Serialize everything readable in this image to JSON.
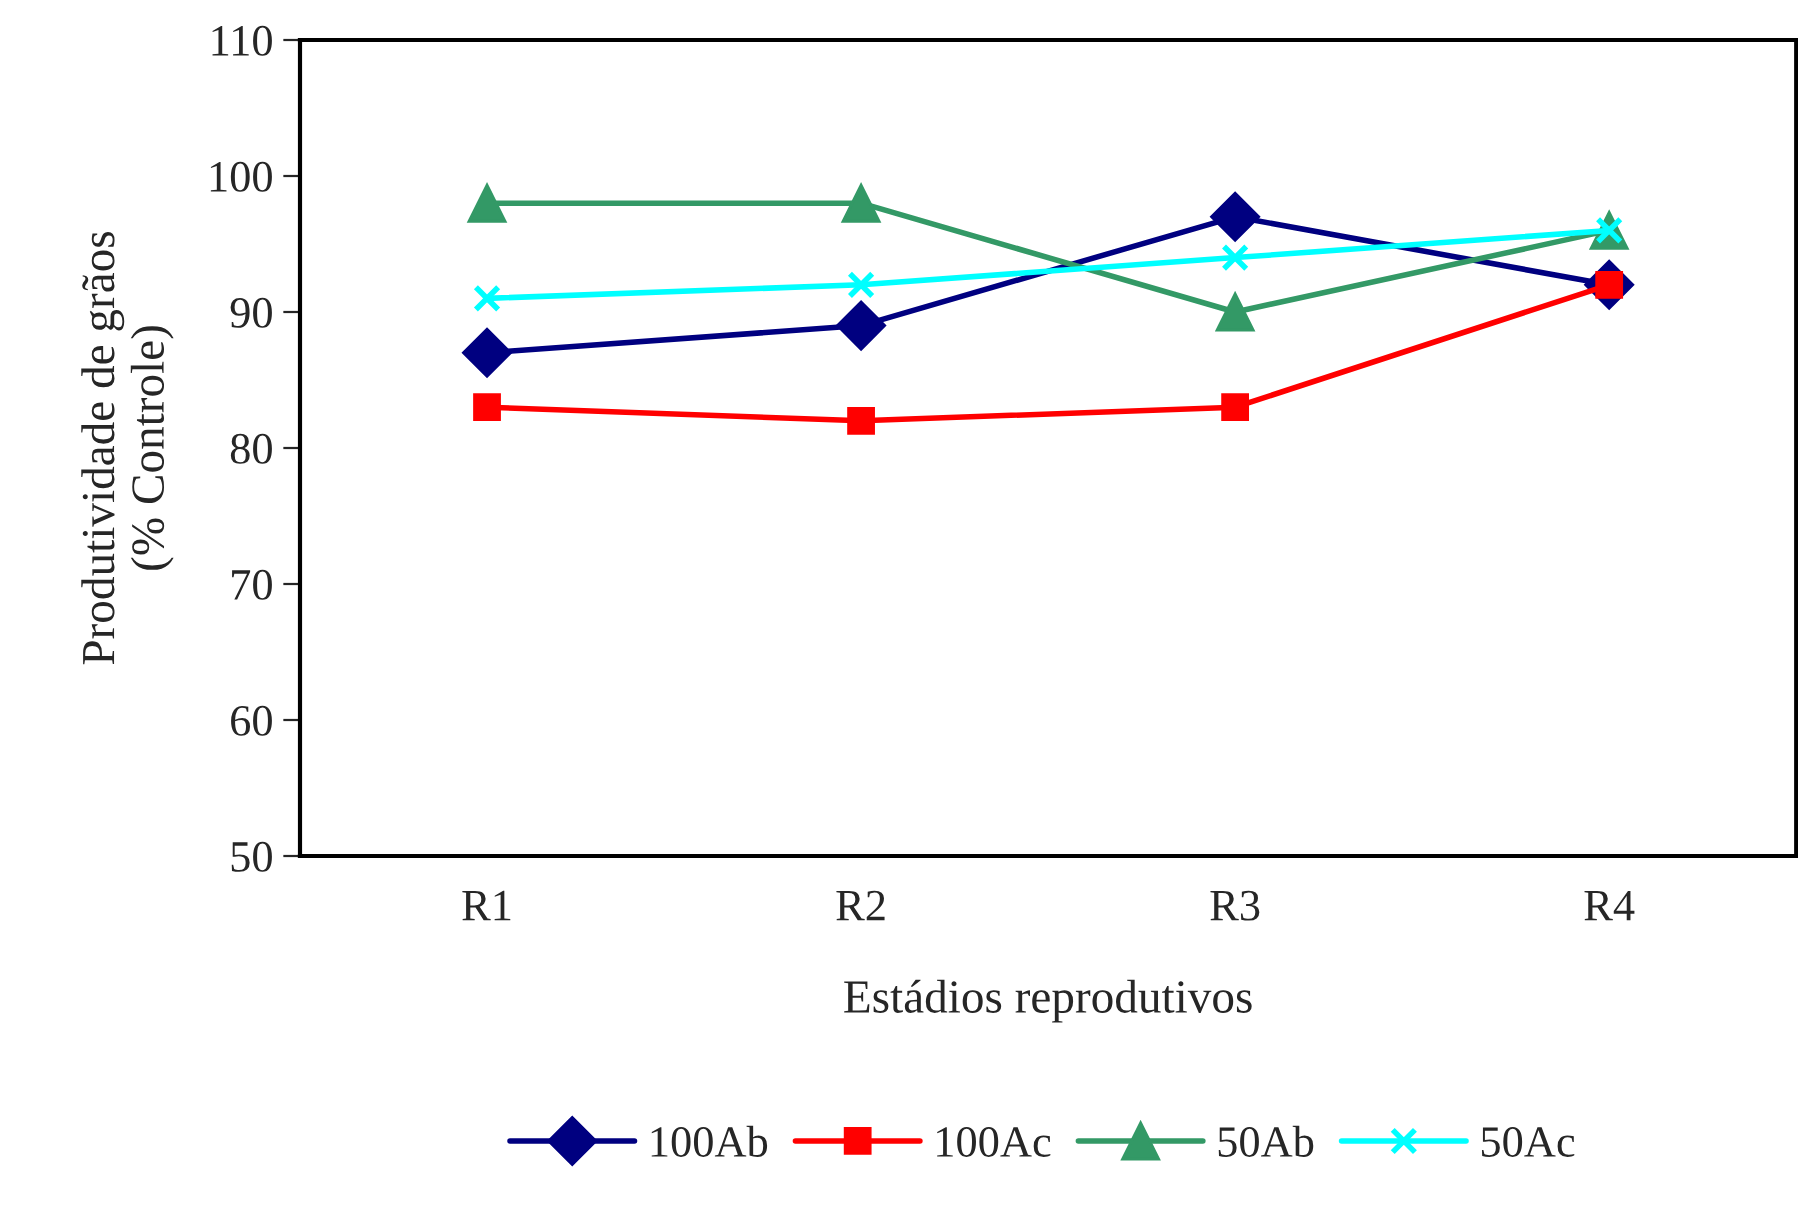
{
  "chart_data": {
    "type": "line",
    "xlabel": "Estádios reprodutivos",
    "ylabel": "Produtividade de grãos\n(% Controle)",
    "categories": [
      "R1",
      "R2",
      "R3",
      "R4"
    ],
    "series": [
      {
        "name": "100Ab",
        "color": "#000080",
        "marker": "diamond",
        "values": [
          87,
          89,
          97,
          92
        ]
      },
      {
        "name": "100Ac",
        "color": "#ff0000",
        "marker": "square",
        "values": [
          83,
          82,
          83,
          92
        ]
      },
      {
        "name": "50Ab",
        "color": "#339966",
        "marker": "triangle",
        "values": [
          98,
          98,
          90,
          96
        ]
      },
      {
        "name": "50Ac",
        "color": "#00ffff",
        "marker": "cross",
        "values": [
          91,
          92,
          94,
          96
        ]
      }
    ],
    "ylim": [
      50,
      110
    ],
    "yticks": [
      50,
      60,
      70,
      80,
      90,
      100,
      110
    ],
    "grid": false,
    "legend": "bottom",
    "line_style": "solid"
  }
}
